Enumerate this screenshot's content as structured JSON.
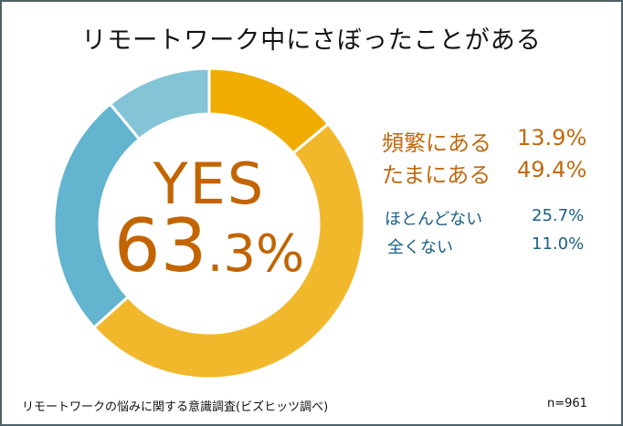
{
  "title": "リモートワーク中にさぼったことがある",
  "center": {
    "label": "YES",
    "value_main": "63",
    "value_sub": ".3%"
  },
  "legend": [
    {
      "label": "頻繁にある",
      "value": "13.9%",
      "color": "#f0ac00",
      "text_color": "#c06a10"
    },
    {
      "label": "たまにある",
      "value": "49.4%",
      "color": "#f2b82c",
      "text_color": "#c06a10"
    },
    {
      "label": "ほとんどない",
      "value": "25.7%",
      "color": "#62b4cf",
      "text_color": "#1a5f85"
    },
    {
      "label": "全くない",
      "value": "11.0%",
      "color": "#84c4d7",
      "text_color": "#1a5f85"
    }
  ],
  "footer": {
    "source": "リモートワークの悩みに関する意識調査(ビズヒッツ調べ)",
    "n": "n=961"
  },
  "chart_data": {
    "type": "pie",
    "title": "リモートワーク中にさぼったことがある",
    "donut": true,
    "center_label": "YES 63.3%",
    "categories": [
      "頻繁にある",
      "たまにある",
      "ほとんどない",
      "全くない"
    ],
    "values": [
      13.9,
      49.4,
      25.7,
      11.0
    ],
    "colors": [
      "#f0ac00",
      "#f2b82c",
      "#62b4cf",
      "#84c4d7"
    ],
    "legend_position": "right",
    "annotations": [
      "n=961",
      "リモートワークの悩みに関する意識調査(ビズヒッツ調べ)"
    ]
  }
}
